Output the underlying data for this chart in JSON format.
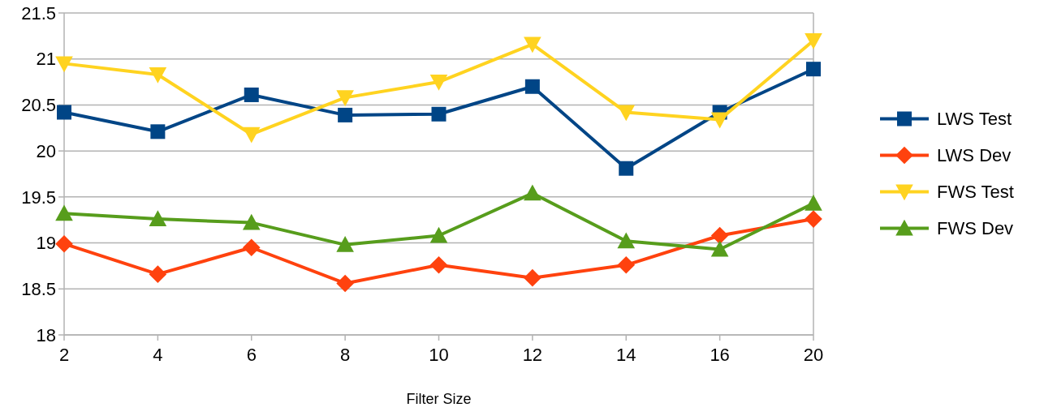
{
  "chart_data": {
    "type": "line",
    "xlabel": "Filter Size",
    "categories": [
      "2",
      "4",
      "6",
      "8",
      "10",
      "12",
      "14",
      "16",
      "20"
    ],
    "ylim": [
      18,
      21.5
    ],
    "yticks": [
      18,
      18.5,
      19,
      19.5,
      20,
      20.5,
      21,
      21.5
    ],
    "grid": "y",
    "legend": "right",
    "series": [
      {
        "name": "LWS Test",
        "color": "#004586",
        "marker": "square",
        "values": [
          20.42,
          20.21,
          20.61,
          20.39,
          20.4,
          20.7,
          19.81,
          20.42,
          20.89
        ]
      },
      {
        "name": "LWS Dev",
        "color": "#ff420e",
        "marker": "diamond",
        "values": [
          18.99,
          18.66,
          18.95,
          18.56,
          18.76,
          18.62,
          18.76,
          19.08,
          19.26
        ]
      },
      {
        "name": "FWS Test",
        "color": "#ffd320",
        "marker": "triangle-down",
        "values": [
          20.95,
          20.83,
          20.18,
          20.58,
          20.75,
          21.16,
          20.42,
          20.34,
          21.2
        ]
      },
      {
        "name": "FWS Dev",
        "color": "#579d1c",
        "marker": "triangle",
        "values": [
          19.32,
          19.26,
          19.22,
          18.98,
          19.08,
          19.54,
          19.02,
          18.93,
          19.43
        ]
      }
    ]
  }
}
